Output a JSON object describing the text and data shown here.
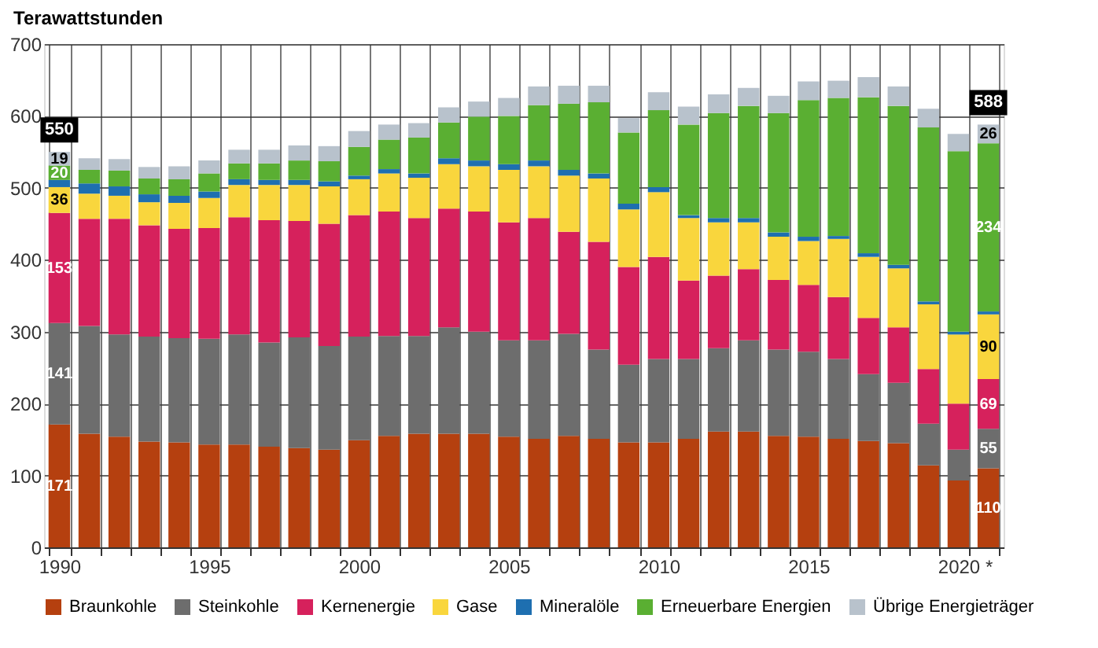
{
  "chart_data": {
    "type": "bar",
    "stacked": true,
    "ylabel": "Terawattstunden",
    "categories": [
      "1990",
      null,
      null,
      null,
      null,
      "1995",
      null,
      null,
      null,
      null,
      "2000",
      null,
      null,
      null,
      null,
      "2005",
      null,
      null,
      null,
      null,
      "2010",
      null,
      null,
      null,
      null,
      "2015",
      null,
      null,
      null,
      null,
      "2020",
      "*"
    ],
    "series": [
      {
        "name": "Braunkohle",
        "color": "#b5400f",
        "values": [
          171,
          158,
          154,
          147,
          146,
          143,
          143,
          140,
          138,
          136,
          149,
          155,
          158,
          158,
          158,
          154,
          151,
          155,
          151,
          146,
          146,
          151,
          161,
          161,
          155,
          154,
          151,
          148,
          145,
          114,
          93,
          110
        ],
        "value_labels": [
          "171",
          null,
          null,
          null,
          null,
          null,
          null,
          null,
          null,
          null,
          null,
          null,
          null,
          null,
          null,
          null,
          null,
          null,
          null,
          null,
          null,
          null,
          null,
          null,
          null,
          null,
          null,
          null,
          null,
          null,
          null,
          "110"
        ]
      },
      {
        "name": "Steinkohle",
        "color": "#6d6d6d",
        "values": [
          141,
          150,
          142,
          146,
          145,
          147,
          153,
          145,
          154,
          144,
          144,
          139,
          136,
          148,
          142,
          134,
          137,
          142,
          124,
          108,
          116,
          111,
          116,
          127,
          120,
          118,
          111,
          93,
          84,
          58,
          43,
          55
        ],
        "value_labels": [
          "141",
          null,
          null,
          null,
          null,
          null,
          null,
          null,
          null,
          null,
          null,
          null,
          null,
          null,
          null,
          null,
          null,
          null,
          null,
          null,
          null,
          null,
          null,
          null,
          null,
          null,
          null,
          null,
          null,
          null,
          null,
          "55"
        ]
      },
      {
        "name": "Kernenergie",
        "color": "#d6215c",
        "values": [
          153,
          149,
          161,
          155,
          152,
          154,
          163,
          170,
          162,
          170,
          169,
          173,
          164,
          165,
          167,
          164,
          170,
          142,
          150,
          136,
          142,
          109,
          101,
          99,
          97,
          93,
          86,
          78,
          77,
          76,
          64,
          69
        ],
        "value_labels": [
          "153",
          null,
          null,
          null,
          null,
          null,
          null,
          null,
          null,
          null,
          null,
          null,
          null,
          null,
          null,
          null,
          null,
          null,
          null,
          null,
          null,
          null,
          null,
          null,
          null,
          null,
          null,
          null,
          null,
          null,
          null,
          "69"
        ]
      },
      {
        "name": "Gase",
        "color": "#f9d63d",
        "values": [
          36,
          35,
          32,
          32,
          36,
          42,
          45,
          49,
          50,
          52,
          50,
          53,
          56,
          62,
          63,
          73,
          72,
          78,
          88,
          80,
          90,
          87,
          74,
          65,
          60,
          61,
          81,
          85,
          82,
          90,
          96,
          90
        ],
        "value_labels": [
          "36",
          null,
          null,
          null,
          null,
          null,
          null,
          null,
          null,
          null,
          null,
          null,
          null,
          null,
          null,
          null,
          null,
          null,
          null,
          null,
          null,
          null,
          null,
          null,
          null,
          null,
          null,
          null,
          null,
          null,
          null,
          "90"
        ]
      },
      {
        "name": "Mineralöle",
        "color": "#1e6fb0",
        "values": [
          10,
          14,
          13,
          11,
          10,
          9,
          8,
          7,
          7,
          7,
          5,
          6,
          6,
          8,
          8,
          8,
          8,
          8,
          7,
          8,
          7,
          4,
          6,
          6,
          6,
          6,
          4,
          5,
          5,
          4,
          4,
          4
        ]
      },
      {
        "name": "Erneuerbare Energien",
        "color": "#5aaf32",
        "values": [
          20,
          19,
          22,
          22,
          23,
          25,
          22,
          23,
          27,
          28,
          40,
          41,
          50,
          50,
          61,
          67,
          77,
          92,
          99,
          99,
          107,
          126,
          146,
          156,
          166,
          190,
          192,
          217,
          221,
          242,
          251,
          234
        ],
        "value_labels": [
          "20",
          null,
          null,
          null,
          null,
          null,
          null,
          null,
          null,
          null,
          null,
          null,
          null,
          null,
          null,
          null,
          null,
          null,
          null,
          null,
          null,
          null,
          null,
          null,
          null,
          null,
          null,
          null,
          null,
          null,
          null,
          "234"
        ]
      },
      {
        "name": "Übrige Energieträger",
        "color": "#b8c2cc",
        "values": [
          19,
          16,
          16,
          16,
          18,
          18,
          19,
          19,
          21,
          21,
          22,
          21,
          20,
          21,
          21,
          25,
          26,
          25,
          23,
          20,
          25,
          25,
          26,
          25,
          24,
          26,
          24,
          28,
          27,
          26,
          24,
          26
        ],
        "value_labels": [
          "19",
          null,
          null,
          null,
          null,
          null,
          null,
          null,
          null,
          null,
          null,
          null,
          null,
          null,
          null,
          null,
          null,
          null,
          null,
          null,
          null,
          null,
          null,
          null,
          null,
          null,
          null,
          null,
          null,
          null,
          null,
          "26"
        ]
      }
    ],
    "totals": [
      "550",
      null,
      null,
      null,
      null,
      null,
      null,
      null,
      null,
      null,
      null,
      null,
      null,
      null,
      null,
      null,
      null,
      null,
      null,
      null,
      null,
      null,
      null,
      null,
      null,
      null,
      null,
      null,
      null,
      null,
      null,
      "588"
    ],
    "ylim": [
      0,
      700
    ],
    "yticks": [
      0,
      100,
      200,
      300,
      400,
      500,
      600,
      700
    ],
    "grid": true,
    "legend": "bottom"
  }
}
